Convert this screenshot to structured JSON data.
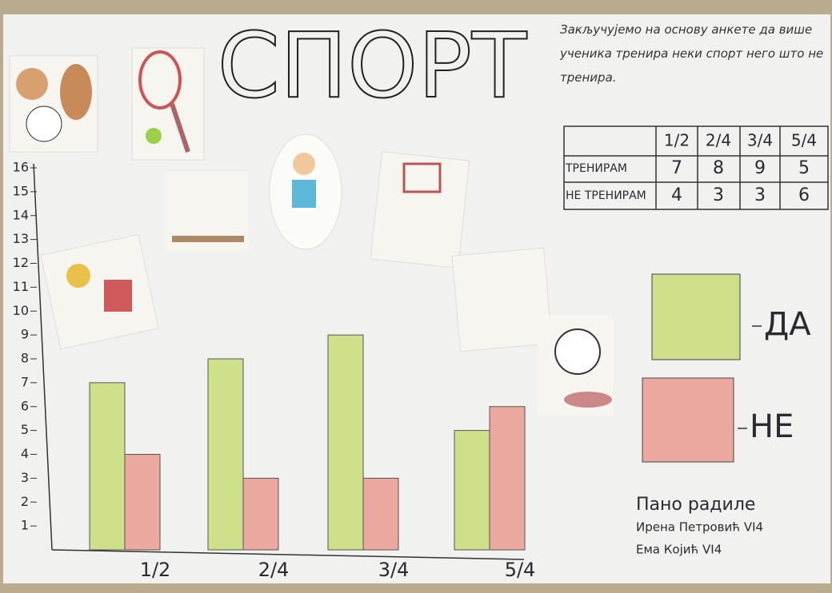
{
  "chart_data": {
    "type": "bar",
    "title": "СПОРТ",
    "note": "Закључујемо на основу анкете да више ученика тренира неки спорт него што не тренира.",
    "categories": [
      "1/2",
      "2/4",
      "3/4",
      "5/4"
    ],
    "series": [
      {
        "name": "ДА",
        "color": "#cfe08a",
        "values": [
          7,
          8,
          9,
          5
        ]
      },
      {
        "name": "НЕ",
        "color": "#eba89f",
        "values": [
          4,
          3,
          3,
          6
        ]
      }
    ],
    "ylim": [
      0,
      16
    ],
    "yticks": [
      1,
      2,
      3,
      4,
      5,
      6,
      7,
      8,
      9,
      10,
      11,
      12,
      13,
      14,
      15,
      16
    ],
    "table_rows": [
      "ТРЕНИРАМ",
      "НЕ ТРЕНИРАМ"
    ],
    "credits": [
      "Пано радиле",
      "Ирена Петровић VI4",
      "Ема Којић VI4"
    ]
  }
}
